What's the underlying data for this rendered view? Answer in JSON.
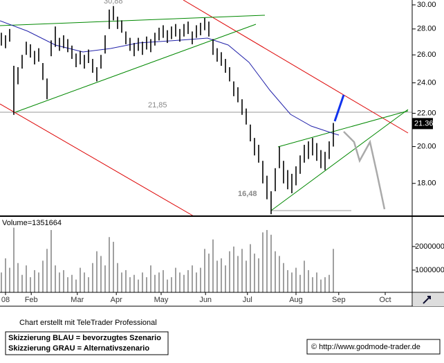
{
  "chart_data": [
    {
      "type": "range-bar",
      "log": true,
      "ylim": [
        16.39,
        30.42
      ],
      "yticks": [
        {
          "value": 18,
          "label": "18.00"
        },
        {
          "value": 20,
          "label": "20.00"
        },
        {
          "value": 22,
          "label": "22.00"
        },
        {
          "value": 24,
          "label": "24.00"
        },
        {
          "value": 26,
          "label": "26.00"
        },
        {
          "value": 28,
          "label": "28.00"
        },
        {
          "value": 30,
          "label": "30.00"
        }
      ],
      "xlim": [
        -0.33,
        99
      ],
      "xticks": [
        {
          "value": 1,
          "label": "08"
        },
        {
          "value": 7.2,
          "label": "Feb"
        },
        {
          "value": 18.3,
          "label": "Mar"
        },
        {
          "value": 27.7,
          "label": "Apr"
        },
        {
          "value": 38.5,
          "label": "May"
        },
        {
          "value": 49.2,
          "label": "Jun"
        },
        {
          "value": 59.3,
          "label": "Jul"
        },
        {
          "value": 71,
          "label": "Aug"
        },
        {
          "value": 81.3,
          "label": "Sep"
        },
        {
          "value": 92.5,
          "label": "Oct"
        }
      ],
      "color": "#000000",
      "highs": [
        27.7,
        27.5,
        28.0,
        25.2,
        25.1,
        26.0,
        27.0,
        26.8,
        26.3,
        26.5,
        25.4,
        24.3,
        27.1,
        28.2,
        27.3,
        27.5,
        27.2,
        26.7,
        26.1,
        26.3,
        26.0,
        26.4,
        25.7,
        25.1,
        26.0,
        27.5,
        29.6,
        29.9,
        29.0,
        28.7,
        27.8,
        27.3,
        26.9,
        27.3,
        27.0,
        27.4,
        27.2,
        27.7,
        28.1,
        28.3,
        27.9,
        28.2,
        28.4,
        28.0,
        28.4,
        28.6,
        27.8,
        28.3,
        28.5,
        28.9,
        28.6,
        27.2,
        26.5,
        26.2,
        25.7,
        25.1,
        24.1,
        23.7,
        22.9,
        22.3,
        21.3,
        20.5,
        20.1,
        19.2,
        18.4,
        17.6,
        18.8,
        20.0,
        19.2,
        18.7,
        18.5,
        18.9,
        19.5,
        20.1,
        20.3,
        20.5,
        20.2,
        19.8,
        19.7,
        20.3,
        21.4
      ],
      "lows": [
        26.7,
        26.5,
        27.0,
        21.9,
        23.9,
        25.0,
        26.0,
        25.8,
        25.3,
        25.5,
        24.2,
        22.9,
        25.9,
        26.6,
        26.3,
        26.5,
        26.2,
        25.7,
        25.1,
        25.3,
        25.0,
        25.4,
        24.7,
        24.1,
        25.0,
        26.1,
        28.0,
        28.7,
        28.0,
        27.7,
        26.8,
        26.3,
        25.9,
        26.3,
        26.0,
        26.4,
        26.2,
        26.7,
        27.1,
        27.3,
        26.9,
        27.2,
        27.4,
        27.0,
        27.4,
        27.6,
        26.8,
        27.3,
        27.5,
        27.9,
        27.4,
        26.0,
        25.5,
        25.2,
        24.7,
        24.1,
        23.1,
        22.7,
        21.9,
        21.3,
        20.3,
        19.5,
        19.1,
        18.0,
        17.2,
        16.48,
        17.6,
        18.8,
        18.0,
        17.7,
        17.5,
        17.9,
        18.5,
        19.1,
        19.3,
        19.5,
        19.2,
        18.8,
        18.7,
        19.3,
        20.0
      ],
      "last_price": 21.36,
      "annotations": [
        {
          "text": "30,88"
        },
        {
          "text": "21,85"
        },
        {
          "text": "16,48"
        }
      ]
    },
    {
      "type": "bar",
      "label": "Volume=1351664",
      "ylim": [
        0,
        3200000
      ],
      "yticks": [
        1000000,
        2000000
      ],
      "color": "#888888",
      "values": [
        900000,
        1500000,
        1100000,
        2800000,
        1300000,
        800000,
        1200000,
        700000,
        1000000,
        900000,
        1400000,
        1900000,
        2700000,
        1200000,
        900000,
        1000000,
        700000,
        800000,
        600000,
        1100000,
        900000,
        700000,
        1300000,
        1800000,
        1600000,
        1200000,
        2400000,
        2200000,
        1300000,
        900000,
        1000000,
        700000,
        800000,
        600000,
        900000,
        700000,
        1200000,
        800000,
        900000,
        1000000,
        600000,
        700000,
        1100000,
        900000,
        800000,
        1000000,
        1200000,
        900000,
        1100000,
        1900000,
        1700000,
        2300000,
        1400000,
        1500000,
        1200000,
        1800000,
        2000000,
        1600000,
        1900000,
        1400000,
        2100000,
        1700000,
        1500000,
        2600000,
        2700000,
        2500000,
        1800000,
        1600000,
        1300000,
        1000000,
        900000,
        1100000,
        800000,
        1400000,
        1000000,
        700000,
        900000,
        600000,
        700000,
        800000,
        1900000
      ]
    }
  ],
  "footer": {
    "credit": "Chart erstellt mit TeleTrader Professional",
    "legend_blue": "Skizzierung BLAU = bevorzugtes Szenario",
    "legend_grey": "Skizzierung GRAU = Alternativszenario",
    "source": "© http://www.godmode-trader.de"
  }
}
